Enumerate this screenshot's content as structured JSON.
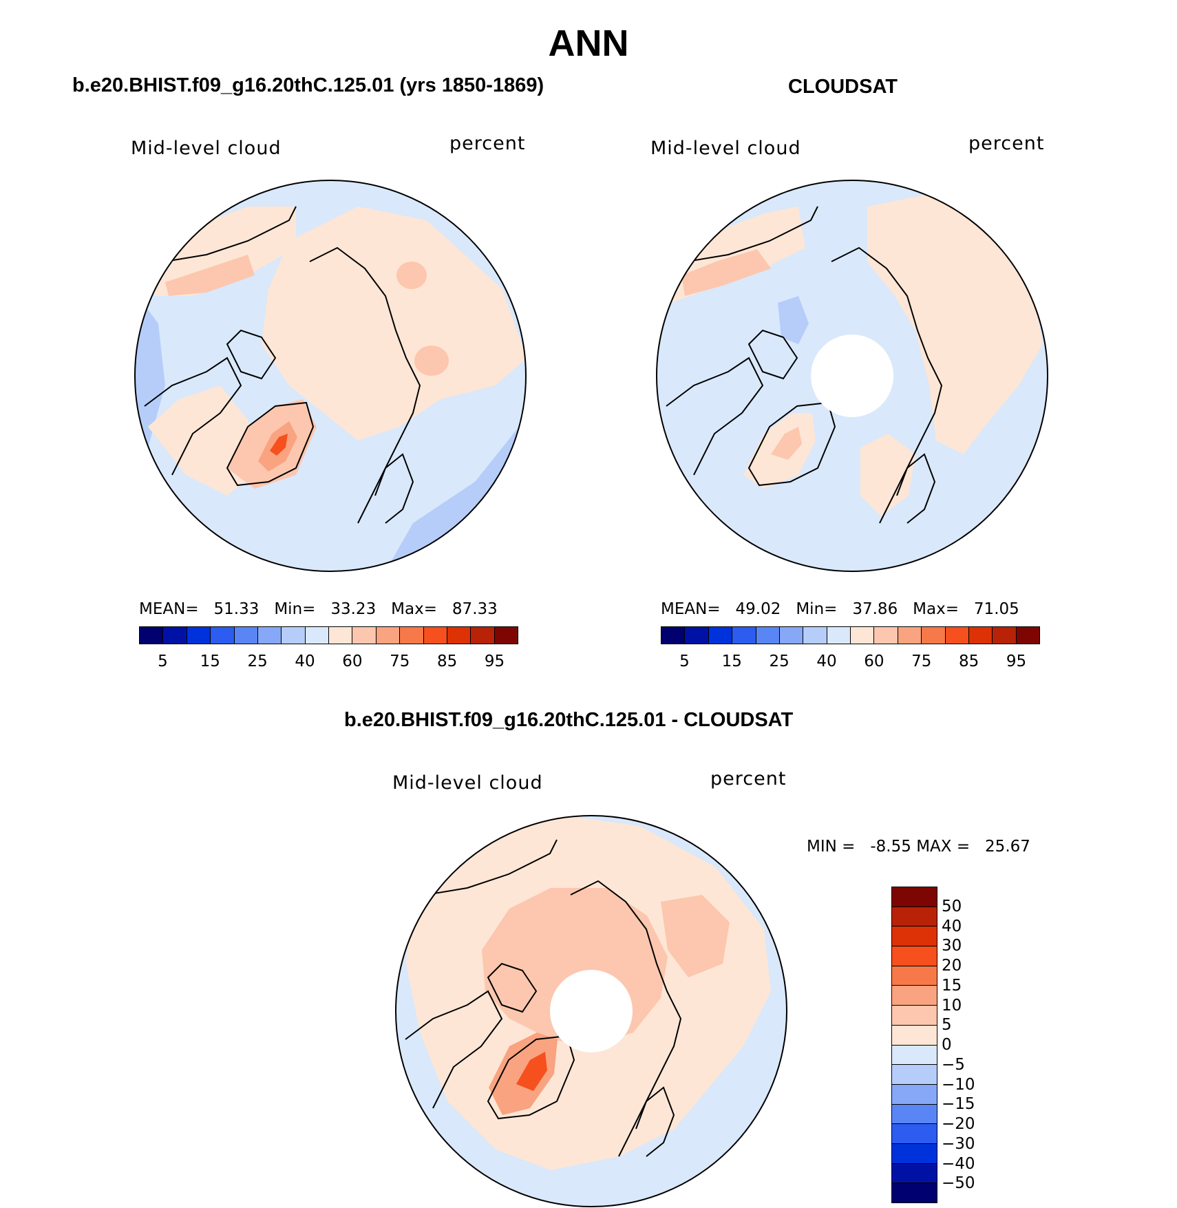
{
  "title": "ANN",
  "colors": {
    "levels_abs": [
      "#00006e",
      "#0012a6",
      "#0032dc",
      "#2c5cf0",
      "#5a86f5",
      "#86a8f7",
      "#b6cdf9",
      "#d9e8fb",
      "#fde6d6",
      "#fcc7ae",
      "#f9a380",
      "#f77949",
      "#f5501e",
      "#dd3205",
      "#b82307",
      "#7d0603"
    ],
    "levels_diff": [
      "#7d0603",
      "#b82307",
      "#dd3205",
      "#f5501e",
      "#f77949",
      "#f9a380",
      "#fcc7ae",
      "#fde6d6",
      "#d9e8fb",
      "#b6cdf9",
      "#86a8f7",
      "#5a86f5",
      "#2c5cf0",
      "#0032dc",
      "#0012a6",
      "#00006e"
    ],
    "ocean_base": "#d9e8fb",
    "coast": "#000000"
  },
  "panels": {
    "model": {
      "title": "b.e20.BHIST.f09_g16.20thC.125.01 (yrs 1850-1869)",
      "variable": "Mid-level cloud",
      "units": "percent",
      "mean_label": "MEAN=",
      "mean": "51.33",
      "min_label": "Min=",
      "min": "33.23",
      "max_label": "Max=",
      "max": "87.33",
      "ticks": [
        "5",
        "15",
        "25",
        "40",
        "60",
        "75",
        "85",
        "95"
      ]
    },
    "obs": {
      "title": "CLOUDSAT",
      "variable": "Mid-level cloud",
      "units": "percent",
      "mean_label": "MEAN=",
      "mean": "49.02",
      "min_label": "Min=",
      "min": "37.86",
      "max_label": "Max=",
      "max": "71.05",
      "ticks": [
        "5",
        "15",
        "25",
        "40",
        "60",
        "75",
        "85",
        "95"
      ]
    },
    "diff": {
      "title": "b.e20.BHIST.f09_g16.20thC.125.01 - CLOUDSAT",
      "variable": "Mid-level cloud",
      "units": "percent",
      "min_label": "MIN =",
      "min": "-8.55",
      "max_label": "MAX =",
      "max": "25.67",
      "ticks": [
        "50",
        "40",
        "30",
        "20",
        "15",
        "10",
        "5",
        "0",
        "−5",
        "−10",
        "−15",
        "−20",
        "−30",
        "−40",
        "−50"
      ]
    }
  }
}
